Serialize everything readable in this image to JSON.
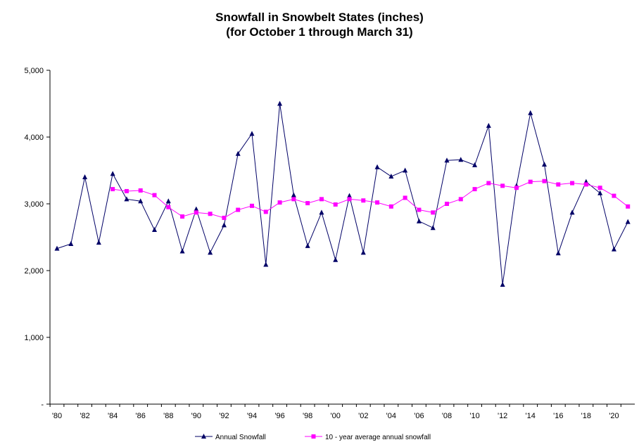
{
  "chart_data": {
    "type": "line",
    "title": "Snowfall in Snowbelt States (inches)",
    "subtitle": "(for October 1 through March 31)",
    "xlabel": "",
    "ylabel": "",
    "ylim": [
      0,
      5000
    ],
    "y_ticks": [
      0,
      1000,
      2000,
      3000,
      4000,
      5000
    ],
    "y_tick_labels": [
      "-",
      "1,000",
      "2,000",
      "3,000",
      "4,000",
      "5,000"
    ],
    "x": [
      1980,
      1981,
      1982,
      1983,
      1984,
      1985,
      1986,
      1987,
      1988,
      1989,
      1990,
      1991,
      1992,
      1993,
      1994,
      1995,
      1996,
      1997,
      1998,
      1999,
      2000,
      2001,
      2002,
      2003,
      2004,
      2005,
      2006,
      2007,
      2008,
      2009,
      2010,
      2011,
      2012,
      2013,
      2014,
      2015,
      2016,
      2017,
      2018,
      2019,
      2020,
      2021
    ],
    "x_tick_labels": [
      "'80",
      "'82",
      "'84",
      "'86",
      "'88",
      "'90",
      "'92",
      "'94",
      "'96",
      "'98",
      "'00",
      "'02",
      "'04",
      "'06",
      "'08",
      "'10",
      "'12",
      "'14",
      "'16",
      "'18",
      "'20"
    ],
    "grid": false,
    "legend_position": "bottom",
    "series": [
      {
        "name": "Annual Snowfall",
        "color": "#000066",
        "marker": "triangle",
        "values": [
          2330,
          2400,
          3400,
          2420,
          3450,
          3070,
          3040,
          2610,
          3040,
          2290,
          2920,
          2270,
          2680,
          3750,
          4050,
          2090,
          4500,
          3130,
          2370,
          2870,
          2160,
          3120,
          2270,
          3550,
          3410,
          3500,
          2740,
          2640,
          3650,
          3660,
          3580,
          4170,
          1790,
          3270,
          4360,
          3590,
          2260,
          2870,
          3330,
          3160,
          2320,
          2730
        ]
      },
      {
        "name": "10 - year average annual snowfall",
        "color": "#ff00ff",
        "marker": "square",
        "values": [
          null,
          null,
          null,
          null,
          3220,
          3190,
          3200,
          3130,
          2950,
          2810,
          2870,
          2850,
          2790,
          2910,
          2970,
          2880,
          3020,
          3070,
          3010,
          3070,
          2990,
          3070,
          3050,
          3020,
          2960,
          3090,
          2910,
          2870,
          3000,
          3070,
          3220,
          3310,
          3270,
          3240,
          3330,
          3340,
          3290,
          3310,
          3290,
          3240,
          3120,
          2960
        ]
      }
    ]
  }
}
